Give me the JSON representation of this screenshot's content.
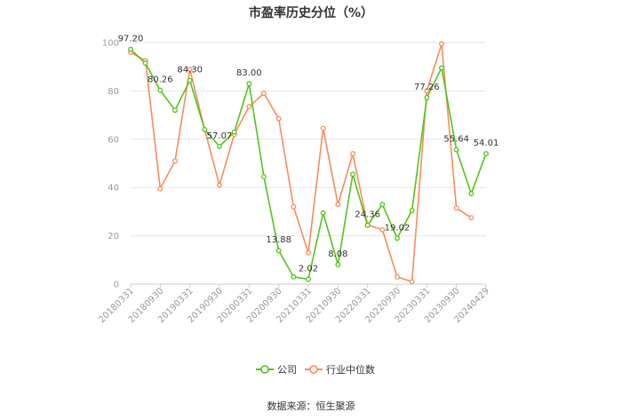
{
  "title": "市盈率历史分位（%）",
  "source": "数据来源：恒生聚源",
  "chart_data": {
    "type": "line",
    "title": "市盈率历史分位（%）",
    "xlabel": "",
    "ylabel": "",
    "ylim": [
      0,
      100
    ],
    "yticks": [
      0,
      20,
      40,
      60,
      80,
      100
    ],
    "grid": true,
    "legend_position": "bottom",
    "x": [
      "20180331",
      "20180630",
      "20180930",
      "20181231",
      "20190331",
      "20190630",
      "20190930",
      "20191231",
      "20200331",
      "20200630",
      "20200930",
      "20201231",
      "20210331",
      "20210630",
      "20210930",
      "20211231",
      "20220331",
      "20220630",
      "20220930",
      "20221231",
      "20230331",
      "20230630",
      "20230930",
      "20231231",
      "20240429"
    ],
    "xticks": [
      "20180331",
      "20180930",
      "20190331",
      "20190930",
      "20200331",
      "20200930",
      "20210331",
      "20210930",
      "20220331",
      "20220930",
      "20230331",
      "20230930",
      "20240429"
    ],
    "series": [
      {
        "name": "公司",
        "color": "#52c41a",
        "values": [
          97.2,
          91.5,
          80.26,
          72.0,
          84.3,
          64.0,
          57.07,
          63.0,
          83.0,
          44.5,
          13.88,
          3.0,
          2.02,
          29.5,
          8.08,
          45.5,
          24.36,
          33.0,
          19.02,
          30.5,
          77.26,
          89.5,
          55.64,
          37.5,
          54.01
        ]
      },
      {
        "name": "行业中位数",
        "color": "#fa8c5a",
        "values": [
          96.0,
          92.5,
          39.5,
          51.0,
          89.0,
          64.0,
          41.0,
          62.0,
          73.5,
          79.0,
          68.5,
          32.0,
          13.0,
          64.5,
          33.0,
          54.0,
          24.5,
          22.5,
          3.0,
          1.0,
          80.0,
          99.5,
          31.5,
          27.5,
          null
        ]
      }
    ],
    "data_labels": [
      {
        "index": 0,
        "text": "97.20"
      },
      {
        "index": 2,
        "text": "80.26"
      },
      {
        "index": 4,
        "text": "84.30"
      },
      {
        "index": 6,
        "text": "57.07"
      },
      {
        "index": 8,
        "text": "83.00"
      },
      {
        "index": 10,
        "text": "13.88"
      },
      {
        "index": 12,
        "text": "2.02"
      },
      {
        "index": 14,
        "text": "8.08"
      },
      {
        "index": 16,
        "text": "24.36"
      },
      {
        "index": 18,
        "text": "19.02"
      },
      {
        "index": 20,
        "text": "77.26"
      },
      {
        "index": 22,
        "text": "55.64"
      },
      {
        "index": 24,
        "text": "54.01"
      }
    ]
  }
}
